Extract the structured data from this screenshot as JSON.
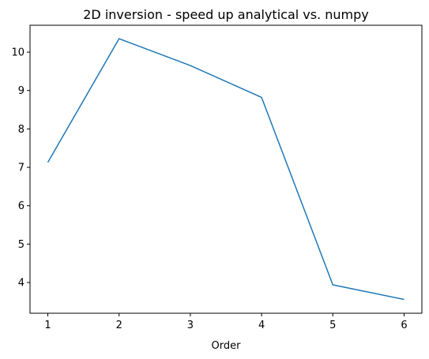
{
  "chart_data": {
    "type": "line",
    "title": "2D inversion - speed up analytical vs. numpy",
    "xlabel": "Order",
    "ylabel": "",
    "x": [
      1,
      2,
      3,
      4,
      5,
      6
    ],
    "series": [
      {
        "values": [
          7.13,
          10.35,
          9.65,
          8.82,
          3.94,
          3.56
        ],
        "color": "#1f77b4"
      }
    ],
    "xticks": [
      1,
      2,
      3,
      4,
      5,
      6
    ],
    "yticks": [
      4,
      5,
      6,
      7,
      8,
      9,
      10
    ],
    "xlim": [
      0.75,
      6.25
    ],
    "ylim": [
      3.2,
      10.7
    ],
    "grid": false,
    "legend": "none"
  }
}
